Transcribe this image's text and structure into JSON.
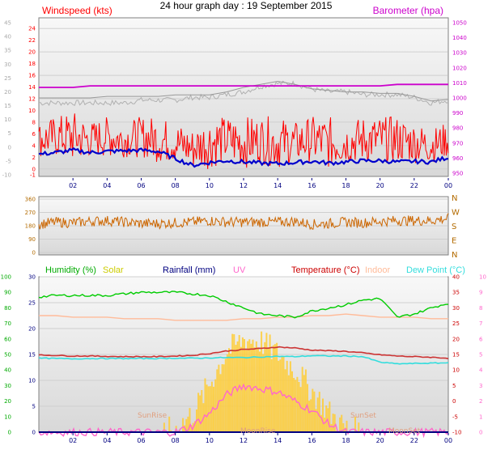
{
  "title": "24 hour graph day : 19 September 2015",
  "x_ticks": [
    "02",
    "04",
    "06",
    "08",
    "10",
    "12",
    "14",
    "16",
    "18",
    "20",
    "22",
    "00"
  ],
  "colors": {
    "wind": "#ff0000",
    "gust": "#ff0000",
    "avg_wind": "#0000cc",
    "baro": "#cc00cc",
    "gust_shadow": "#b0b0b0",
    "baro_shadow": "#999999",
    "dir": "#cc6600",
    "humidity": "#00cc00",
    "solar": "#ffcc33",
    "uv": "#ff66cc",
    "temp": "#cc3333",
    "indoor": "#ffbb99",
    "dew": "#33dddd",
    "rain": "#000080",
    "frame": "#808080"
  },
  "chart_data": [
    {
      "type": "line",
      "panel": "wind-baro",
      "labels": {
        "left": "Windspeed (kts)",
        "right": "Barometer (hpa)"
      },
      "y_left": {
        "min": -1,
        "max": 25,
        "ticks": [
          -1,
          0,
          2,
          4,
          6,
          8,
          10,
          12,
          14,
          16,
          18,
          20,
          22,
          24
        ]
      },
      "y_left_outer": {
        "min": -10,
        "max": 45,
        "ticks": [
          -10,
          -5,
          0,
          5,
          10,
          15,
          20,
          25,
          30,
          35,
          40,
          45
        ]
      },
      "y_right": {
        "min": 950,
        "max": 1050,
        "ticks": [
          950,
          960,
          970,
          980,
          990,
          1000,
          1010,
          1020,
          1030,
          1040,
          1050
        ]
      },
      "x": [
        0,
        1,
        2,
        3,
        4,
        5,
        6,
        7,
        8,
        9,
        10,
        11,
        12,
        13,
        14,
        15,
        16,
        17,
        18,
        19,
        20,
        21,
        22,
        23,
        24
      ],
      "series": [
        {
          "key": "wind_max",
          "values": [
            8,
            9,
            10,
            8,
            9,
            8,
            9,
            9,
            8,
            7,
            9,
            9,
            9,
            9,
            9,
            8,
            9,
            9,
            8,
            9,
            9,
            9,
            8,
            7,
            8
          ]
        },
        {
          "key": "wind_min",
          "values": [
            2,
            2,
            1,
            2,
            2,
            2,
            2,
            1,
            1,
            0,
            0,
            1,
            0,
            1,
            0,
            1,
            1,
            0,
            1,
            1,
            1,
            1,
            1,
            1,
            2
          ]
        },
        {
          "key": "avg_wind",
          "values": [
            2.5,
            2.8,
            3.2,
            2.8,
            3.0,
            3.1,
            3.2,
            3.0,
            1.8,
            0.6,
            1.1,
            1.4,
            1.2,
            1.0,
            0.9,
            1.1,
            1.3,
            1.0,
            1.2,
            1.4,
            1.4,
            1.2,
            1.3,
            1.2,
            2.0
          ]
        },
        {
          "key": "baro",
          "values": [
            1007,
            1007,
            1007,
            1008,
            1008,
            1008,
            1008,
            1008,
            1008,
            1008,
            1008,
            1008,
            1008,
            1008,
            1008,
            1008,
            1008,
            1008,
            1008,
            1008,
            1008,
            1009,
            1009,
            1009,
            1009
          ]
        },
        {
          "key": "baro_shadow",
          "values": [
            1000,
            1000,
            1000,
            1000,
            1001,
            1001,
            1001,
            1001,
            1002,
            1002,
            1002,
            1004,
            1007,
            1009,
            1011,
            1009,
            1006,
            1005,
            1004,
            1004,
            1003,
            1003,
            1001,
            998,
            999
          ]
        },
        {
          "key": "gust_shadow",
          "values": [
            16,
            16,
            16,
            16,
            16,
            16,
            17,
            17,
            17,
            18,
            18,
            19,
            20,
            22,
            23,
            23,
            21,
            20,
            20,
            19,
            19,
            19,
            18,
            16,
            17
          ]
        }
      ]
    },
    {
      "type": "scatter",
      "panel": "direction",
      "y_left": {
        "min": 0,
        "max": 360,
        "ticks": [
          0,
          90,
          180,
          270,
          360
        ]
      },
      "y_right_labels": [
        "N",
        "W",
        "S",
        "E",
        "N"
      ],
      "x": [
        0,
        1,
        2,
        3,
        4,
        5,
        6,
        7,
        8,
        9,
        10,
        11,
        12,
        13,
        14,
        15,
        16,
        17,
        18,
        19,
        20,
        21,
        22,
        23,
        24
      ],
      "series": [
        {
          "key": "direction",
          "values": [
            190,
            205,
            200,
            210,
            215,
            205,
            195,
            195,
            200,
            205,
            215,
            205,
            205,
            205,
            205,
            210,
            190,
            195,
            205,
            200,
            210,
            215,
            215,
            215,
            230
          ]
        }
      ]
    },
    {
      "type": "line",
      "panel": "temp-hum",
      "labels": {
        "humidity": "Humidity (%)",
        "solar": "Solar",
        "rain": "Rainfall (mm)",
        "uv": "UV",
        "temp": "Temperature (°C)",
        "indoor": "Indoor",
        "dew": "Dew Point (°C)"
      },
      "y_hum": {
        "min": 0,
        "max": 100,
        "ticks": [
          0,
          10,
          20,
          30,
          40,
          50,
          60,
          70,
          80,
          90,
          100
        ]
      },
      "y_rain": {
        "min": 0,
        "max": 30,
        "ticks": [
          0,
          5,
          10,
          15,
          20,
          25,
          30
        ]
      },
      "y_temp": {
        "min": -10,
        "max": 40,
        "ticks": [
          -10,
          -5,
          0,
          5,
          10,
          15,
          20,
          25,
          30,
          35,
          40
        ]
      },
      "y_uv": {
        "min": 0,
        "max": 10,
        "ticks": [
          0,
          1,
          2,
          3,
          4,
          5,
          6,
          7,
          8,
          9,
          10
        ]
      },
      "markers": {
        "sunrise": "SunRise",
        "sunset": "SunSet",
        "moonrise": "MoonRise",
        "moonset": "MoonSet"
      },
      "x": [
        0,
        1,
        2,
        3,
        4,
        5,
        6,
        7,
        8,
        9,
        10,
        11,
        12,
        13,
        14,
        15,
        16,
        17,
        18,
        19,
        20,
        21,
        22,
        23,
        24
      ],
      "series": [
        {
          "key": "humidity",
          "values": [
            87,
            88,
            88,
            88,
            88,
            89,
            90,
            90,
            90,
            89,
            88,
            84,
            80,
            76,
            75,
            74,
            78,
            80,
            82,
            85,
            86,
            74,
            76,
            80,
            83
          ]
        },
        {
          "key": "indoor",
          "values": [
            75,
            75,
            74,
            74,
            74,
            73,
            73,
            73,
            72,
            72,
            72,
            72,
            73,
            73,
            74,
            74,
            75,
            75,
            76,
            75,
            74,
            74,
            74,
            73,
            73
          ]
        },
        {
          "key": "temp",
          "values": [
            14.8,
            14.7,
            14.5,
            14.5,
            14.4,
            14.3,
            14.3,
            14.3,
            14.5,
            14.7,
            15.3,
            16.1,
            16.6,
            16.9,
            17.4,
            17.1,
            16.4,
            16.2,
            16.0,
            15.5,
            14.9,
            14.5,
            14.3,
            14.1,
            13.8
          ]
        },
        {
          "key": "dew",
          "values": [
            13.8,
            13.7,
            13.6,
            13.7,
            13.7,
            13.7,
            13.7,
            13.7,
            13.8,
            13.8,
            13.9,
            14.0,
            14.0,
            14.2,
            14.4,
            14.3,
            14.6,
            14.5,
            14.5,
            14.3,
            12.5,
            12.0,
            12.1,
            12.2,
            12.3
          ]
        },
        {
          "key": "solar",
          "values": [
            0,
            0,
            0,
            0,
            0,
            0,
            0,
            0,
            0.2,
            1.2,
            3.2,
            5.2,
            6.0,
            5.8,
            5.0,
            4.0,
            2.6,
            1.2,
            0.2,
            0,
            0,
            0,
            0,
            0,
            0
          ]
        },
        {
          "key": "uv",
          "values": [
            0,
            0,
            0,
            0,
            0,
            0,
            0,
            0,
            0,
            0.4,
            1.2,
            2.4,
            3.0,
            2.8,
            2.6,
            2.0,
            1.4,
            0.5,
            0,
            0,
            0,
            0,
            0,
            0,
            0
          ]
        },
        {
          "key": "rain",
          "values": [
            0,
            0,
            0,
            0,
            0,
            0,
            0,
            0,
            0,
            0,
            0,
            0,
            0,
            0,
            0,
            0,
            0,
            0,
            0,
            0,
            0,
            0,
            0,
            0,
            0
          ]
        }
      ]
    }
  ]
}
